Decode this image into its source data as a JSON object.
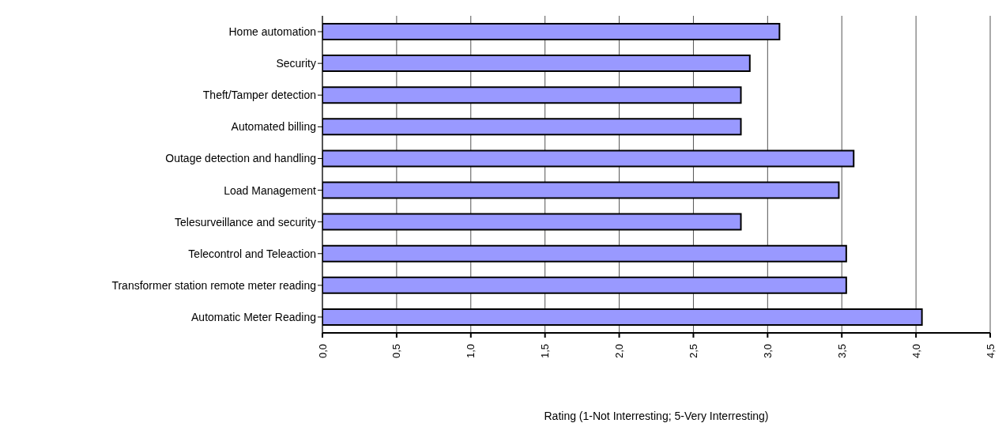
{
  "chart_data": {
    "type": "bar",
    "orientation": "horizontal",
    "xlabel": "Rating (1-Not Interresting; 5-Very Interresting)",
    "categories": [
      "Home automation",
      "Security",
      "Theft/Tamper detection",
      "Automated billing",
      "Outage detection and handling",
      "Load Management",
      "Telesurveillance and security",
      "Telecontrol and Teleaction",
      "Transformer station remote meter reading",
      "Automatic Meter Reading"
    ],
    "values": [
      3.08,
      2.88,
      2.82,
      2.82,
      3.58,
      3.48,
      2.82,
      3.53,
      3.53,
      4.04
    ],
    "color": "#9999ff",
    "xlim": [
      0,
      4.5
    ],
    "xticks": [
      {
        "value": 0,
        "label": "0,0"
      },
      {
        "value": 0.5,
        "label": "0,5"
      },
      {
        "value": 1,
        "label": "1,0"
      },
      {
        "value": 1.5,
        "label": "1,5"
      },
      {
        "value": 2,
        "label": "2,0"
      },
      {
        "value": 2.5,
        "label": "2,5"
      },
      {
        "value": 3,
        "label": "3,0"
      },
      {
        "value": 3.5,
        "label": "3,5"
      },
      {
        "value": 4,
        "label": "4,0"
      },
      {
        "value": 4.5,
        "label": "4,5"
      }
    ],
    "grid": "x",
    "legend": false
  }
}
